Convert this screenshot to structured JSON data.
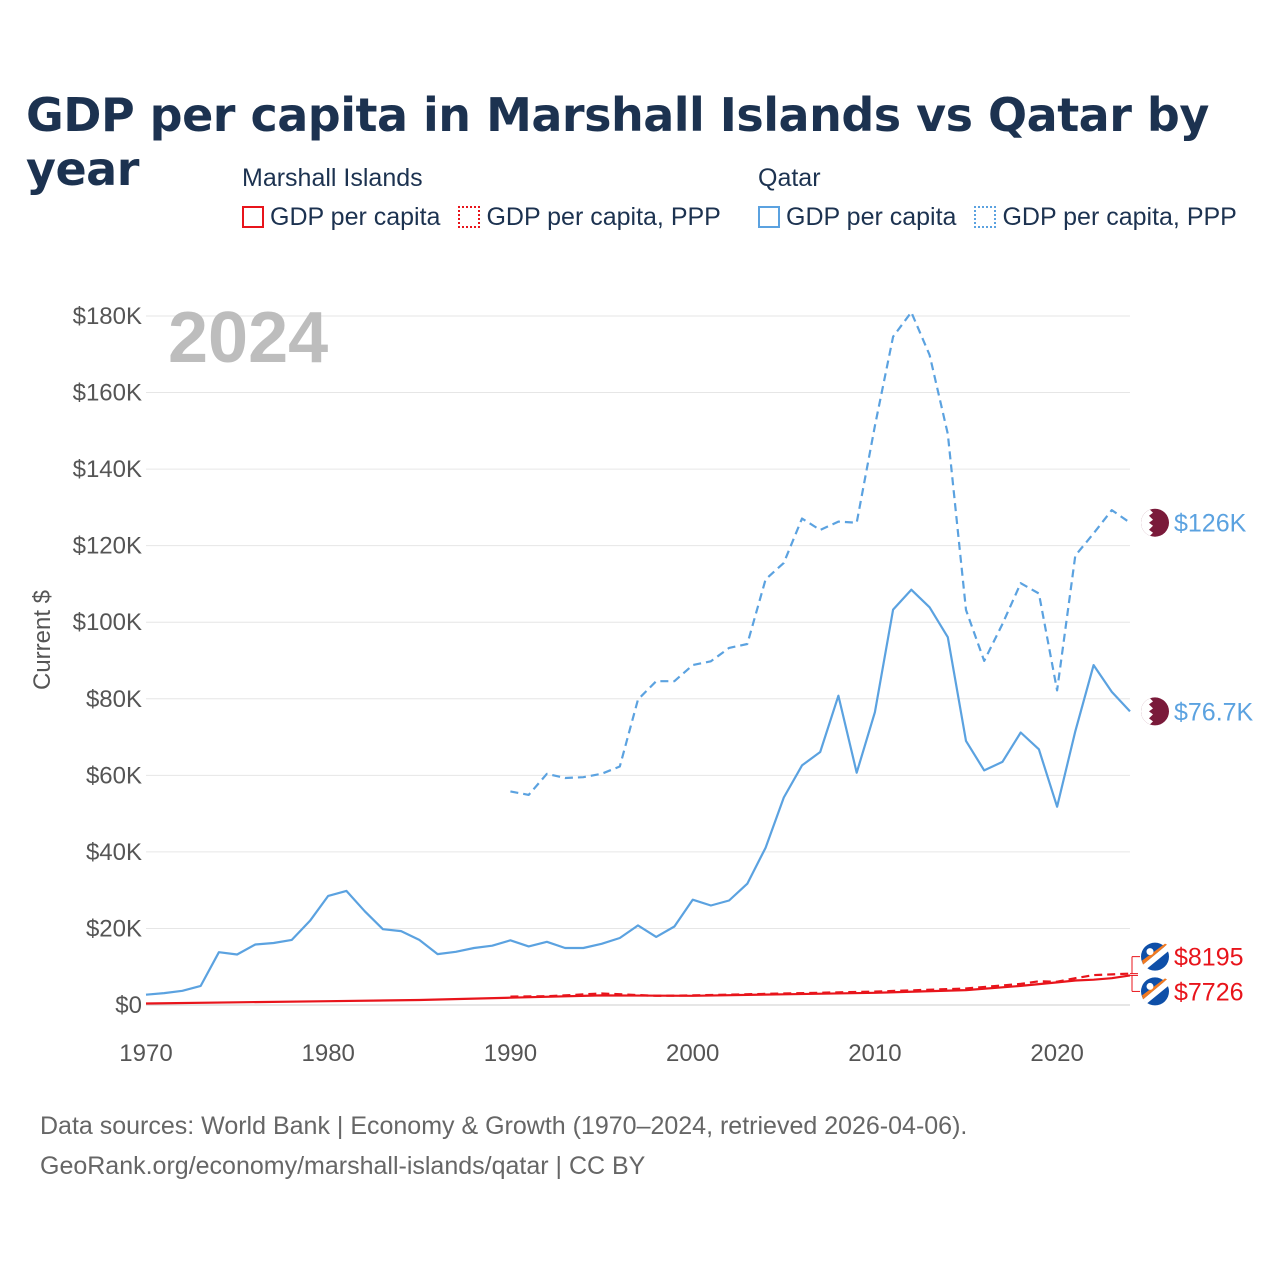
{
  "title": "GDP per capita in Marshall Islands vs Qatar by year",
  "legend": {
    "groups": [
      {
        "name": "Marshall Islands",
        "items": [
          {
            "label": "GDP per capita",
            "style": "solid",
            "color": "#e8141b"
          },
          {
            "label": "GDP per capita, PPP",
            "style": "dotted",
            "color": "#e8141b"
          }
        ]
      },
      {
        "name": "Qatar",
        "items": [
          {
            "label": "GDP per capita",
            "style": "solid",
            "color": "#5ba2e0"
          },
          {
            "label": "GDP per capita, PPP",
            "style": "dotted",
            "color": "#5ba2e0"
          }
        ]
      }
    ]
  },
  "sources": {
    "line1": "Data sources: World Bank | Economy & Growth (1970–2024, retrieved 2026-04-06).",
    "line2": "GeoRank.org/economy/marshall-islands/qatar | CC BY"
  },
  "chart_data": {
    "type": "line",
    "year_watermark": "2024",
    "ylabel": "Current $",
    "xlabel": "",
    "xlim": [
      1970,
      2024
    ],
    "ylim": [
      0,
      180000
    ],
    "x_ticks": [
      1970,
      1980,
      1990,
      2000,
      2010,
      2020
    ],
    "y_ticks": [
      {
        "value": 0,
        "label": "$0"
      },
      {
        "value": 20000,
        "label": "$20K"
      },
      {
        "value": 40000,
        "label": "$40K"
      },
      {
        "value": 60000,
        "label": "$60K"
      },
      {
        "value": 80000,
        "label": "$80K"
      },
      {
        "value": 100000,
        "label": "$100K"
      },
      {
        "value": 120000,
        "label": "$120K"
      },
      {
        "value": 140000,
        "label": "$140K"
      },
      {
        "value": 160000,
        "label": "$160K"
      },
      {
        "value": 180000,
        "label": "$180K"
      }
    ],
    "grid": true,
    "series": [
      {
        "name": "Qatar GDP per capita",
        "country": "Qatar",
        "style": "solid",
        "color": "#5ba2e0",
        "end_label": "$76.7K",
        "x": [
          1970,
          1971,
          1972,
          1973,
          1974,
          1975,
          1976,
          1977,
          1978,
          1979,
          1980,
          1981,
          1982,
          1983,
          1984,
          1985,
          1986,
          1987,
          1988,
          1989,
          1990,
          1991,
          1992,
          1993,
          1994,
          1995,
          1996,
          1997,
          1998,
          1999,
          2000,
          2001,
          2002,
          2003,
          2004,
          2005,
          2006,
          2007,
          2008,
          2009,
          2010,
          2011,
          2012,
          2013,
          2014,
          2015,
          2016,
          2017,
          2018,
          2019,
          2020,
          2021,
          2022,
          2023,
          2024
        ],
        "values": [
          2700,
          3100,
          3700,
          5000,
          13800,
          13200,
          15800,
          16200,
          17000,
          22000,
          28500,
          29800,
          24500,
          19800,
          19300,
          17000,
          13300,
          13900,
          14900,
          15500,
          16900,
          15300,
          16500,
          14900,
          14900,
          16000,
          17500,
          20800,
          17800,
          20500,
          27500,
          26000,
          27300,
          31700,
          41100,
          54200,
          62600,
          66100,
          80800,
          60700,
          76500,
          103300,
          108500,
          103900,
          96100,
          69000,
          61300,
          63500,
          71200,
          66800,
          51800,
          71500,
          88800,
          81800,
          76700
        ]
      },
      {
        "name": "Qatar GDP per capita, PPP",
        "country": "Qatar",
        "style": "dashed",
        "color": "#5ba2e0",
        "end_label": "$126K",
        "x": [
          1990,
          1991,
          1992,
          1993,
          1994,
          1995,
          1996,
          1997,
          1998,
          1999,
          2000,
          2001,
          2002,
          2003,
          2004,
          2005,
          2006,
          2007,
          2008,
          2009,
          2010,
          2011,
          2012,
          2013,
          2014,
          2015,
          2016,
          2017,
          2018,
          2019,
          2020,
          2021,
          2022,
          2023,
          2024
        ],
        "values": [
          55800,
          54900,
          60400,
          59300,
          59500,
          60400,
          62300,
          79800,
          84600,
          84600,
          88800,
          89800,
          93300,
          94300,
          111200,
          115500,
          127100,
          124100,
          126300,
          126000,
          151300,
          174600,
          181000,
          169800,
          149200,
          103200,
          89900,
          99500,
          110200,
          107500,
          82200,
          117400,
          123200,
          129300,
          126000
        ]
      },
      {
        "name": "Marshall Islands GDP per capita",
        "country": "Marshall Islands",
        "style": "solid",
        "color": "#e8141b",
        "end_label": "$7726",
        "x": [
          1970,
          1975,
          1980,
          1985,
          1990,
          1995,
          2000,
          2005,
          2010,
          2015,
          2018,
          2020,
          2021,
          2022,
          2023,
          2024
        ],
        "values": [
          400,
          700,
          1000,
          1300,
          1900,
          2500,
          2400,
          2800,
          3200,
          3900,
          5000,
          5900,
          6400,
          6600,
          7000,
          7726
        ]
      },
      {
        "name": "Marshall Islands GDP per capita, PPP",
        "country": "Marshall Islands",
        "style": "dashed",
        "color": "#e8141b",
        "end_label": "$8195",
        "x": [
          1990,
          1992,
          1995,
          1998,
          2000,
          2005,
          2010,
          2015,
          2018,
          2019,
          2020,
          2021,
          2022,
          2023,
          2024
        ],
        "values": [
          2200,
          2300,
          3000,
          2400,
          2500,
          3000,
          3500,
          4300,
          5500,
          6200,
          6100,
          7000,
          7800,
          8000,
          8195
        ]
      }
    ]
  }
}
